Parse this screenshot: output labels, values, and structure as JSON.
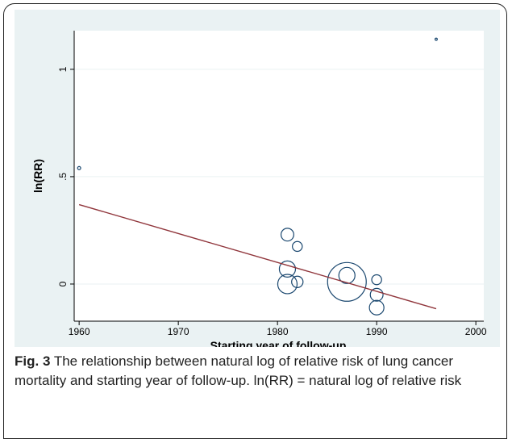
{
  "chart_data": {
    "type": "scatter",
    "xlabel": "Starting year of follow-up",
    "ylabel": "ln(RR)",
    "xlim": [
      1959.5,
      2000.8
    ],
    "xticks": [
      1960,
      1970,
      1980,
      1990,
      2000
    ],
    "ylim": [
      -0.173,
      1.18
    ],
    "yticks": [
      0,
      {
        "value": 0.5,
        "label": ".5"
      },
      1
    ],
    "grid": true,
    "series": [
      {
        "color": "#1a476f",
        "x": [
          1960,
          1996,
          1981,
          1982,
          1981,
          1981,
          1982,
          1987,
          1987,
          1990,
          1990,
          1990
        ],
        "values": [
          0.54,
          1.14,
          0.23,
          0.175,
          0.07,
          0.0,
          0.01,
          0.01,
          0.04,
          0.02,
          -0.05,
          -0.11
        ],
        "sizes": [
          0.6,
          0.3,
          10,
          6,
          16,
          23,
          8,
          92,
          16,
          6,
          10,
          13
        ]
      }
    ],
    "fit_line": {
      "color": "#90353b",
      "x": [
        1960,
        1996
      ],
      "values": [
        0.37,
        -0.115
      ]
    }
  },
  "caption": {
    "label": "Fig. 3",
    "text": "The relationship between natural log of relative risk of lung cancer mortality and starting year of follow-up. ln(RR) = natural log of relative risk"
  }
}
